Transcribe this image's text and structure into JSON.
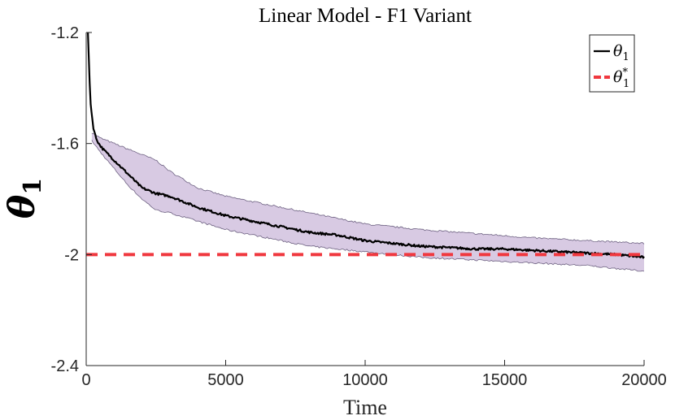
{
  "chart_data": {
    "type": "line",
    "title": "Linear Model - F1 Variant",
    "xlabel": "Time",
    "ylabel": "θ",
    "ylabel_subscript": "1",
    "xlim": [
      0,
      20000
    ],
    "ylim": [
      -2.4,
      -1.2
    ],
    "x_ticks": [
      0,
      5000,
      10000,
      15000,
      20000
    ],
    "x_tick_labels": [
      "0",
      "5000",
      "10000",
      "15000",
      "20000"
    ],
    "y_ticks": [
      -1.2,
      -1.6,
      -2,
      -2.4
    ],
    "y_tick_labels": [
      "-1.2",
      "-1.6",
      "-2",
      "-2.4"
    ],
    "grid": false,
    "legend_position": "top-right",
    "series": [
      {
        "name": "θ1",
        "legend_symbol": "θ",
        "legend_subscript": "1",
        "legend_superscript": "",
        "color": "#000000",
        "style": "solid",
        "x": [
          60,
          150,
          250,
          350,
          450,
          600,
          800,
          1000,
          1200,
          1400,
          1600,
          1800,
          2000,
          2500,
          3000,
          3500,
          4000,
          5000,
          6000,
          7000,
          8000,
          9000,
          10000,
          11000,
          12000,
          13000,
          14000,
          15000,
          16000,
          17000,
          18000,
          19000,
          20000
        ],
        "values": [
          -1.2,
          -1.45,
          -1.54,
          -1.58,
          -1.6,
          -1.62,
          -1.64,
          -1.66,
          -1.68,
          -1.7,
          -1.72,
          -1.74,
          -1.76,
          -1.78,
          -1.79,
          -1.81,
          -1.83,
          -1.86,
          -1.88,
          -1.9,
          -1.92,
          -1.93,
          -1.95,
          -1.96,
          -1.97,
          -1.975,
          -1.98,
          -1.98,
          -1.985,
          -1.99,
          -1.995,
          -2.0,
          -2.01
        ]
      },
      {
        "name": "θ1*",
        "legend_symbol": "θ",
        "legend_subscript": "1",
        "legend_superscript": "*",
        "color": "#f0383f",
        "style": "dashed",
        "x": [
          0,
          20000
        ],
        "values": [
          -2.0,
          -2.0
        ]
      }
    ],
    "band": {
      "name": "confidence band",
      "color": "#d8cae3",
      "edge_color": "#6e6282",
      "x": [
        200,
        500,
        1000,
        1500,
        2000,
        2500,
        3000,
        4000,
        5000,
        6000,
        7000,
        8000,
        9000,
        10000,
        12000,
        14000,
        16000,
        18000,
        20000
      ],
      "upper": [
        -1.56,
        -1.58,
        -1.6,
        -1.62,
        -1.64,
        -1.66,
        -1.7,
        -1.76,
        -1.79,
        -1.81,
        -1.83,
        -1.85,
        -1.87,
        -1.89,
        -1.91,
        -1.925,
        -1.94,
        -1.95,
        -1.96
      ],
      "lower": [
        -1.59,
        -1.63,
        -1.69,
        -1.75,
        -1.8,
        -1.84,
        -1.85,
        -1.88,
        -1.91,
        -1.93,
        -1.95,
        -1.97,
        -1.98,
        -1.99,
        -2.01,
        -2.02,
        -2.03,
        -2.04,
        -2.06
      ]
    }
  }
}
